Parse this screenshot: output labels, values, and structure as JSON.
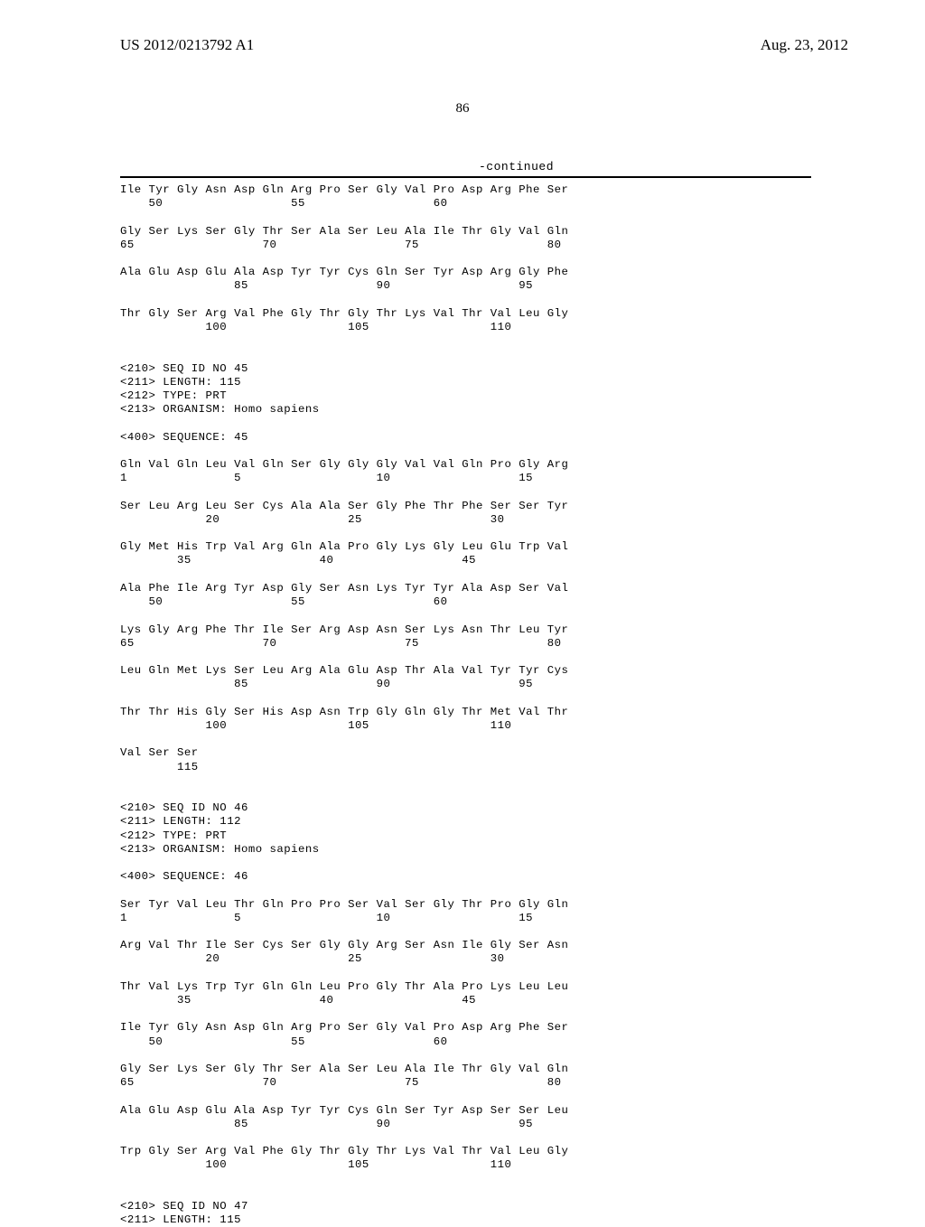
{
  "header": {
    "publication_number": "US 2012/0213792 A1",
    "publication_date": "Aug. 23, 2012"
  },
  "page_number": "86",
  "continued_label": "-continued",
  "sequence_text": "Ile Tyr Gly Asn Asp Gln Arg Pro Ser Gly Val Pro Asp Arg Phe Ser\n    50                  55                  60\n\nGly Ser Lys Ser Gly Thr Ser Ala Ser Leu Ala Ile Thr Gly Val Gln\n65                  70                  75                  80\n\nAla Glu Asp Glu Ala Asp Tyr Tyr Cys Gln Ser Tyr Asp Arg Gly Phe\n                85                  90                  95\n\nThr Gly Ser Arg Val Phe Gly Thr Gly Thr Lys Val Thr Val Leu Gly\n            100                 105                 110\n\n\n<210> SEQ ID NO 45\n<211> LENGTH: 115\n<212> TYPE: PRT\n<213> ORGANISM: Homo sapiens\n\n<400> SEQUENCE: 45\n\nGln Val Gln Leu Val Gln Ser Gly Gly Gly Val Val Gln Pro Gly Arg\n1               5                   10                  15\n\nSer Leu Arg Leu Ser Cys Ala Ala Ser Gly Phe Thr Phe Ser Ser Tyr\n            20                  25                  30\n\nGly Met His Trp Val Arg Gln Ala Pro Gly Lys Gly Leu Glu Trp Val\n        35                  40                  45\n\nAla Phe Ile Arg Tyr Asp Gly Ser Asn Lys Tyr Tyr Ala Asp Ser Val\n    50                  55                  60\n\nLys Gly Arg Phe Thr Ile Ser Arg Asp Asn Ser Lys Asn Thr Leu Tyr\n65                  70                  75                  80\n\nLeu Gln Met Lys Ser Leu Arg Ala Glu Asp Thr Ala Val Tyr Tyr Cys\n                85                  90                  95\n\nThr Thr His Gly Ser His Asp Asn Trp Gly Gln Gly Thr Met Val Thr\n            100                 105                 110\n\nVal Ser Ser\n        115\n\n\n<210> SEQ ID NO 46\n<211> LENGTH: 112\n<212> TYPE: PRT\n<213> ORGANISM: Homo sapiens\n\n<400> SEQUENCE: 46\n\nSer Tyr Val Leu Thr Gln Pro Pro Ser Val Ser Gly Thr Pro Gly Gln\n1               5                   10                  15\n\nArg Val Thr Ile Ser Cys Ser Gly Gly Arg Ser Asn Ile Gly Ser Asn\n            20                  25                  30\n\nThr Val Lys Trp Tyr Gln Gln Leu Pro Gly Thr Ala Pro Lys Leu Leu\n        35                  40                  45\n\nIle Tyr Gly Asn Asp Gln Arg Pro Ser Gly Val Pro Asp Arg Phe Ser\n    50                  55                  60\n\nGly Ser Lys Ser Gly Thr Ser Ala Ser Leu Ala Ile Thr Gly Val Gln\n65                  70                  75                  80\n\nAla Glu Asp Glu Ala Asp Tyr Tyr Cys Gln Ser Tyr Asp Ser Ser Leu\n                85                  90                  95\n\nTrp Gly Ser Arg Val Phe Gly Thr Gly Thr Lys Val Thr Val Leu Gly\n            100                 105                 110\n\n\n<210> SEQ ID NO 47\n<211> LENGTH: 115"
}
